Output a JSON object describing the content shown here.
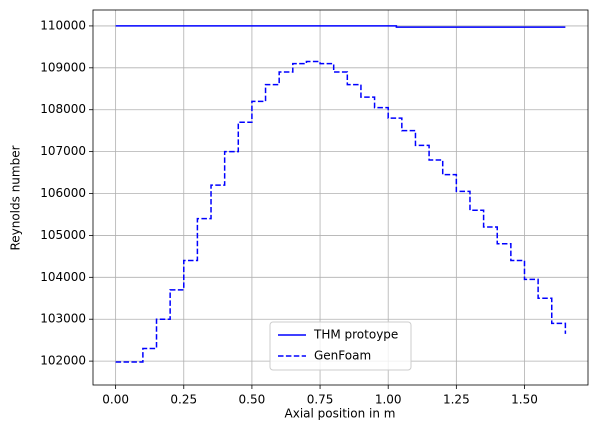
{
  "chart_data": {
    "type": "line",
    "xlabel": "Axial position in m",
    "ylabel": "Reynolds number",
    "drawstyle": "steps-post",
    "series": [
      {
        "name": "THM protoype",
        "color": "#0000ff",
        "dash": false,
        "x": [
          0,
          1.03,
          1.65
        ],
        "values": [
          110000,
          109970,
          109970
        ]
      },
      {
        "name": "GenFoam",
        "color": "#0000ff",
        "dash": true,
        "x": [
          0,
          0.05,
          0.1,
          0.15,
          0.2,
          0.25,
          0.3,
          0.35,
          0.4,
          0.45,
          0.5,
          0.55,
          0.6,
          0.65,
          0.7,
          0.75,
          0.8,
          0.85,
          0.9,
          0.95,
          1.0,
          1.05,
          1.1,
          1.15,
          1.2,
          1.25,
          1.3,
          1.35,
          1.4,
          1.45,
          1.5,
          1.55,
          1.6,
          1.65
        ],
        "values": [
          101980,
          101980,
          102300,
          103000,
          103700,
          104400,
          105400,
          106200,
          107000,
          107700,
          108200,
          108600,
          108900,
          109100,
          109150,
          109100,
          108900,
          108600,
          108300,
          108050,
          107800,
          107500,
          107150,
          106800,
          106450,
          106050,
          105600,
          105200,
          104800,
          104400,
          103950,
          103500,
          102900,
          102650
        ]
      }
    ],
    "xlim": [
      -0.083,
      1.733
    ],
    "xticks": [
      {
        "value": 0,
        "label": "0.00"
      },
      {
        "value": 0.25,
        "label": "0.25"
      },
      {
        "value": 0.5,
        "label": "0.50"
      },
      {
        "value": 0.75,
        "label": "0.75"
      },
      {
        "value": 1.0,
        "label": "1.00"
      },
      {
        "value": 1.25,
        "label": "1.25"
      },
      {
        "value": 1.5,
        "label": "1.50"
      }
    ],
    "ylim": [
      101430,
      110380
    ],
    "yticks": [
      102000,
      103000,
      104000,
      105000,
      106000,
      107000,
      108000,
      109000,
      110000
    ],
    "grid": true,
    "legend": "lower center"
  }
}
